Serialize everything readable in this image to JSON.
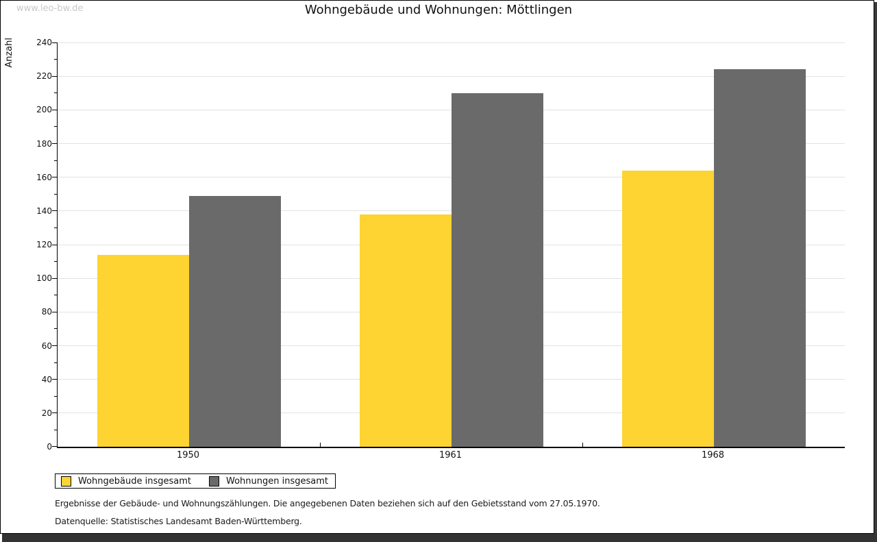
{
  "watermark": "www.leo-bw.de",
  "header": {
    "title": "Wohngebäude und Wohnungen: Möttlingen"
  },
  "colors": {
    "series1": "#FDD431",
    "series2": "#6A6A6A",
    "gridline": "#E2E2E2",
    "axis": "#000000",
    "watermark": "#C8C8C8",
    "frame_shadow": "#333333"
  },
  "chart_data": {
    "type": "bar",
    "title": "Wohngebäude und Wohnungen: Möttlingen",
    "categories": [
      "1950",
      "1961",
      "1968"
    ],
    "series": [
      {
        "name": "Wohngebäude insgesamt",
        "color": "#FDD431",
        "values": [
          114,
          138,
          164
        ]
      },
      {
        "name": "Wohnungen insgesamt",
        "color": "#6A6A6A",
        "values": [
          149,
          210,
          224
        ]
      }
    ],
    "xlabel": "",
    "ylabel": "Anzahl",
    "ylim": [
      0,
      240
    ],
    "ytick_step": 20,
    "yticks": [
      0,
      20,
      40,
      60,
      80,
      100,
      120,
      140,
      160,
      180,
      200,
      220,
      240
    ],
    "minor_tick_step": 10,
    "grid": true,
    "legend_position": "bottom-left"
  },
  "legend": {
    "items": [
      {
        "label": "Wohngebäude insgesamt",
        "color": "#FDD431"
      },
      {
        "label": "Wohnungen insgesamt",
        "color": "#6A6A6A"
      }
    ]
  },
  "footer": {
    "line1": "Ergebnisse der Gebäude- und Wohnungszählungen. Die angegebenen Daten beziehen sich auf den Gebietsstand vom 27.05.1970.",
    "line2": "Datenquelle: Statistisches Landesamt Baden-Württemberg."
  }
}
